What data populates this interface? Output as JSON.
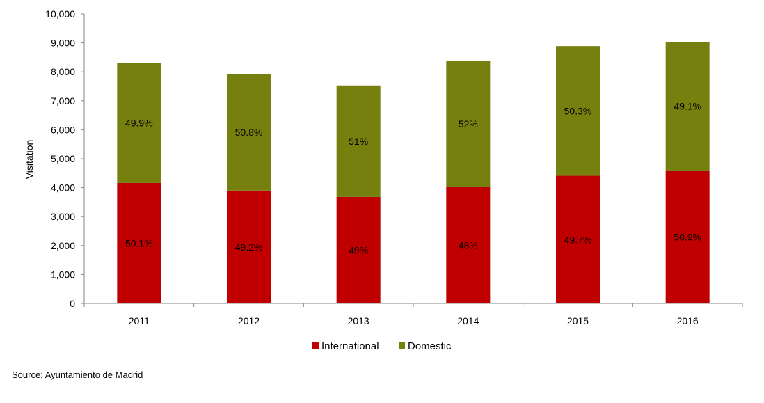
{
  "chart_data": {
    "type": "bar",
    "stacked": true,
    "ylabel": "Visitation",
    "ylim": [
      0,
      10000
    ],
    "yticks": [
      0,
      1000,
      2000,
      3000,
      4000,
      5000,
      6000,
      7000,
      8000,
      9000,
      10000
    ],
    "ytick_labels": [
      "0",
      "1,000",
      "2,000",
      "3,000",
      "4,000",
      "5,000",
      "6,000",
      "7,000",
      "8,000",
      "9,000",
      "10,000"
    ],
    "categories": [
      "2011",
      "2012",
      "2013",
      "2014",
      "2015",
      "2016"
    ],
    "series": [
      {
        "name": "International",
        "color": "#c00000",
        "values": [
          4160,
          3900,
          3680,
          4020,
          4410,
          4590
        ],
        "labels": [
          "50.1%",
          "49.2%",
          "49%",
          "48%",
          "49.7%",
          "50.9%"
        ]
      },
      {
        "name": "Domestic",
        "color": "#76800f",
        "values": [
          4150,
          4030,
          3850,
          4370,
          4480,
          4440
        ],
        "labels": [
          "49.9%",
          "50.8%",
          "51%",
          "52%",
          "50.3%",
          "49.1%"
        ]
      }
    ],
    "grid": false,
    "legend": "bottom-center"
  },
  "source": "Source: Ayuntamiento de Madrid"
}
